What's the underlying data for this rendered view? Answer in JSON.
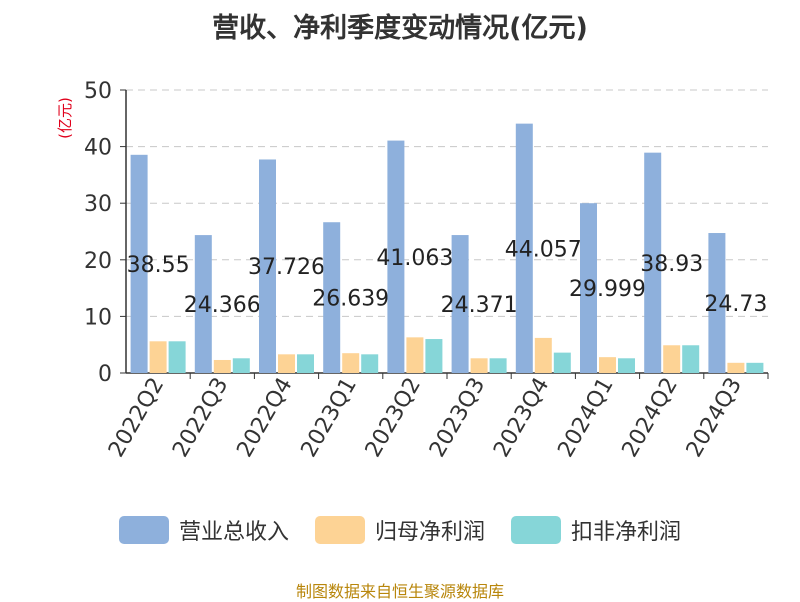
{
  "chart_data": {
    "type": "bar",
    "title": "营收、净利季度变动情况(亿元)",
    "ylabel": "(亿元)",
    "xlabel": "",
    "ylim": [
      0,
      50
    ],
    "yticks": [
      0,
      10,
      20,
      30,
      40,
      50
    ],
    "grid": true,
    "legend_position": "bottom",
    "categories": [
      "2022Q2",
      "2022Q3",
      "2022Q4",
      "2023Q1",
      "2023Q2",
      "2023Q3",
      "2023Q4",
      "2024Q1",
      "2024Q2",
      "2024Q3"
    ],
    "series": [
      {
        "name": "营业总收入",
        "color": "#8eb0dc",
        "values": [
          38.55,
          24.366,
          37.726,
          26.639,
          41.063,
          24.371,
          44.057,
          29.999,
          38.93,
          24.73
        ]
      },
      {
        "name": "归母净利润",
        "color": "#fdd395",
        "values": [
          5.6,
          2.3,
          3.3,
          3.5,
          6.3,
          2.6,
          6.2,
          2.8,
          4.9,
          1.8
        ]
      },
      {
        "name": "扣非净利润",
        "color": "#86d6d8",
        "values": [
          5.6,
          2.6,
          3.3,
          3.3,
          6.0,
          2.6,
          3.6,
          2.6,
          4.9,
          1.8
        ]
      }
    ],
    "data_labels": [
      "38.55",
      "24.366",
      "37.726",
      "26.639",
      "41.063",
      "24.371",
      "44.057",
      "29.999",
      "38.93",
      "24.73"
    ]
  },
  "source": "制图数据来自恒生聚源数据库"
}
